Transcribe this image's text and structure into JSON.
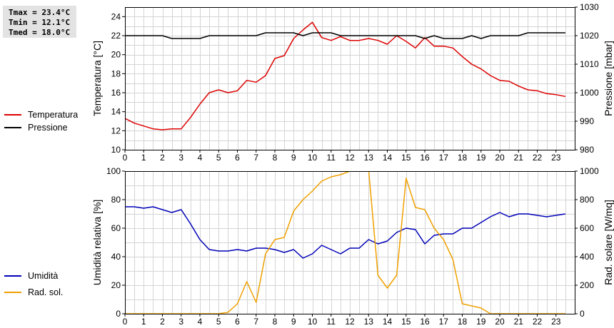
{
  "stats": {
    "tmax": "Tmax = 23.4°C",
    "tmin": "Tmin = 12.1°C",
    "tmed": "Tmed = 18.0°C"
  },
  "legend": {
    "temp": "Temperatura",
    "press": "Pressione",
    "hum": "Umidità",
    "rad": "Rad. sol."
  },
  "colors": {
    "temp": "#dd0000",
    "press": "#000000",
    "hum": "#0000b8",
    "rad": "#f0a000",
    "grid": "#d4d4d4"
  },
  "chart_data": [
    {
      "type": "line",
      "ylabel": "Temperatura [°C]",
      "y2label": "Pressione [mbar]",
      "xlim": [
        0,
        24
      ],
      "ylim": [
        10,
        25
      ],
      "y2lim": [
        980,
        1030
      ],
      "xticks": [
        0,
        1,
        2,
        3,
        4,
        5,
        6,
        7,
        8,
        9,
        10,
        11,
        12,
        13,
        14,
        15,
        16,
        17,
        18,
        19,
        20,
        21,
        22,
        23
      ],
      "yticks": [
        10,
        12,
        14,
        16,
        18,
        20,
        22,
        24
      ],
      "y2ticks": [
        980,
        990,
        1000,
        1010,
        1020,
        1030
      ],
      "grid": true,
      "legend": "left",
      "series": [
        {
          "name": "Temperatura",
          "axis": "left",
          "color": "#dd0000",
          "x": [
            0,
            0.5,
            1,
            1.5,
            2,
            2.5,
            3,
            3.5,
            4,
            4.5,
            5,
            5.5,
            6,
            6.5,
            7,
            7.5,
            8,
            8.5,
            9,
            9.5,
            10,
            10.5,
            11,
            11.5,
            12,
            12.5,
            13,
            13.5,
            14,
            14.5,
            15,
            15.5,
            16,
            16.5,
            17,
            17.5,
            18,
            18.5,
            19,
            19.5,
            20,
            20.5,
            21,
            21.5,
            22,
            22.5,
            23,
            23.5
          ],
          "y": [
            13.3,
            12.8,
            12.5,
            12.2,
            12.1,
            12.2,
            12.2,
            13.4,
            14.8,
            16.0,
            16.3,
            16.0,
            16.2,
            17.3,
            17.1,
            17.8,
            19.6,
            19.9,
            21.7,
            22.6,
            23.4,
            21.8,
            21.5,
            21.9,
            21.5,
            21.5,
            21.7,
            21.5,
            21.1,
            22.0,
            21.4,
            20.7,
            21.8,
            20.9,
            20.9,
            20.7,
            19.8,
            19.0,
            18.5,
            17.8,
            17.3,
            17.2,
            16.7,
            16.3,
            16.2,
            15.9,
            15.8,
            15.6
          ]
        },
        {
          "name": "Pressione",
          "axis": "right",
          "color": "#000000",
          "x": [
            0,
            0.5,
            1,
            1.5,
            2,
            2.5,
            3,
            3.5,
            4,
            4.5,
            5,
            5.5,
            6,
            6.5,
            7,
            7.5,
            8,
            8.5,
            9,
            9.5,
            10,
            10.5,
            11,
            11.5,
            12,
            12.5,
            13,
            13.5,
            14,
            14.5,
            15,
            15.5,
            16,
            16.5,
            17,
            17.5,
            18,
            18.5,
            19,
            19.5,
            20,
            20.5,
            21,
            21.5,
            22,
            22.5,
            23,
            23.5
          ],
          "y": [
            1020,
            1020,
            1020,
            1020,
            1020,
            1019,
            1019,
            1019,
            1019,
            1020,
            1020,
            1020,
            1020,
            1020,
            1020,
            1021,
            1021,
            1021,
            1021,
            1020,
            1021,
            1021,
            1021,
            1020,
            1020,
            1020,
            1020,
            1020,
            1020,
            1020,
            1020,
            1020,
            1019,
            1020,
            1019,
            1019,
            1019,
            1020,
            1019,
            1020,
            1020,
            1020,
            1020,
            1021,
            1021,
            1021,
            1021,
            1021
          ]
        }
      ]
    },
    {
      "type": "line",
      "ylabel": "Umidità relativa [%]",
      "y2label": "Rad. solare [W/mq]",
      "xlim": [
        0,
        24
      ],
      "ylim": [
        0,
        100
      ],
      "y2lim": [
        0,
        1000
      ],
      "xticks": [
        0,
        1,
        2,
        3,
        4,
        5,
        6,
        7,
        8,
        9,
        10,
        11,
        12,
        13,
        14,
        15,
        16,
        17,
        18,
        19,
        20,
        21,
        22,
        23
      ],
      "yticks": [
        0,
        20,
        40,
        60,
        80,
        100
      ],
      "y2ticks": [
        0,
        200,
        400,
        600,
        800,
        1000
      ],
      "grid": true,
      "legend": "left",
      "series": [
        {
          "name": "Umidità",
          "axis": "left",
          "color": "#0000b8",
          "x": [
            0,
            0.5,
            1,
            1.5,
            2,
            2.5,
            3,
            3.5,
            4,
            4.5,
            5,
            5.5,
            6,
            6.5,
            7,
            7.5,
            8,
            8.5,
            9,
            9.5,
            10,
            10.5,
            11,
            11.5,
            12,
            12.5,
            13,
            13.5,
            14,
            14.5,
            15,
            15.5,
            16,
            16.5,
            17,
            17.5,
            18,
            18.5,
            19,
            19.5,
            20,
            20.5,
            21,
            21.5,
            22,
            22.5,
            23,
            23.5
          ],
          "y": [
            75,
            75,
            74,
            75,
            73,
            71,
            73,
            63,
            52,
            45,
            44,
            44,
            45,
            44,
            46,
            46,
            45,
            43,
            45,
            39,
            42,
            48,
            45,
            42,
            46,
            46,
            52,
            49,
            51,
            57,
            60,
            59,
            49,
            55,
            56,
            56,
            60,
            60,
            64,
            68,
            71,
            68,
            70,
            70,
            69,
            68,
            69,
            70
          ]
        },
        {
          "name": "Rad. sol.",
          "axis": "right",
          "color": "#f0a000",
          "x": [
            0,
            0.5,
            1,
            1.5,
            2,
            2.5,
            3,
            3.5,
            4,
            4.5,
            5,
            5.5,
            6,
            6.5,
            7,
            7.5,
            8,
            8.5,
            9,
            9.5,
            10,
            10.5,
            11,
            11.5,
            12,
            12.5,
            13,
            13.5,
            14,
            14.5,
            15,
            15.5,
            16,
            16.5,
            17,
            17.5,
            18,
            18.5,
            19,
            19.5,
            20,
            20.5,
            21,
            21.5,
            22,
            22.5,
            23,
            23.5
          ],
          "y": [
            0,
            0,
            0,
            0,
            0,
            0,
            0,
            0,
            0,
            0,
            0,
            10,
            70,
            225,
            80,
            420,
            520,
            535,
            720,
            800,
            860,
            930,
            960,
            975,
            1000,
            1020,
            1010,
            270,
            180,
            270,
            950,
            745,
            730,
            600,
            520,
            380,
            70,
            55,
            40,
            0,
            0,
            0,
            0,
            0,
            0,
            0,
            0,
            0
          ]
        }
      ]
    }
  ]
}
